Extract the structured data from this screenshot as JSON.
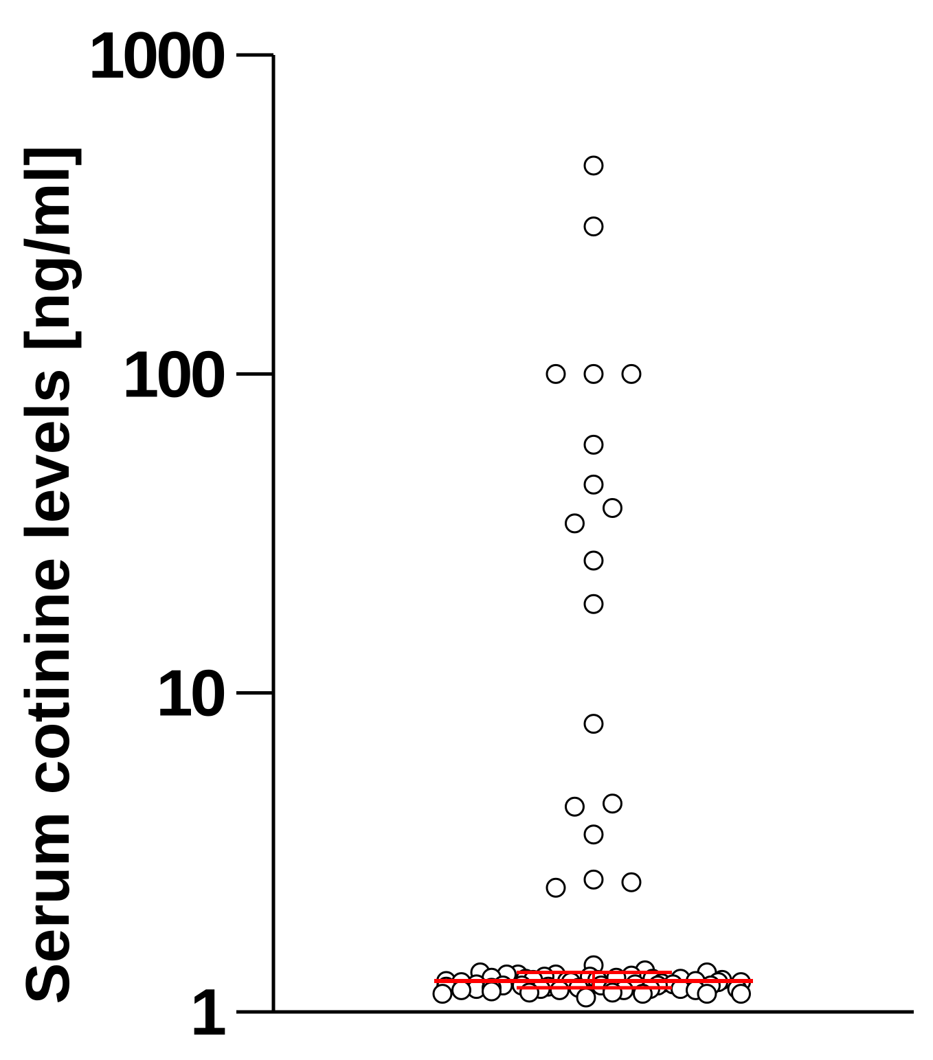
{
  "chart_data": {
    "type": "scatter",
    "ylabel": "Serum cotinine levels [ng/ml]",
    "yscale": "log",
    "ylim": [
      1,
      1000
    ],
    "yticks": [
      1,
      10,
      100,
      1000
    ],
    "ytick_labels": [
      "1",
      "10",
      "100",
      "1000"
    ],
    "grid": false,
    "legend": "none",
    "colors": {
      "points_edge": "#000000",
      "points_fill": "#ffffff",
      "summary_lines": "#ff0000"
    },
    "summary": {
      "center": 1.25,
      "upper": 1.33,
      "lower": 1.19
    },
    "points": [
      {
        "x": 0,
        "y": 450
      },
      {
        "x": 0,
        "y": 290
      },
      {
        "x": -0.5,
        "y": 100
      },
      {
        "x": 0,
        "y": 100
      },
      {
        "x": 0.5,
        "y": 100
      },
      {
        "x": 0,
        "y": 60
      },
      {
        "x": 0,
        "y": 45
      },
      {
        "x": 0.25,
        "y": 38
      },
      {
        "x": -0.25,
        "y": 34
      },
      {
        "x": 0,
        "y": 26
      },
      {
        "x": 0,
        "y": 19
      },
      {
        "x": 0,
        "y": 8
      },
      {
        "x": 0.25,
        "y": 4.5
      },
      {
        "x": -0.25,
        "y": 4.4
      },
      {
        "x": 0,
        "y": 3.6
      },
      {
        "x": 0,
        "y": 2.6
      },
      {
        "x": 0.5,
        "y": 2.55
      },
      {
        "x": -0.5,
        "y": 2.45
      },
      {
        "x": 0,
        "y": 1.4
      },
      {
        "x": 0.68,
        "y": 1.35
      },
      {
        "x": 1.5,
        "y": 1.33
      },
      {
        "x": -1.5,
        "y": 1.33
      },
      {
        "x": -1.0,
        "y": 1.31
      },
      {
        "x": -0.5,
        "y": 1.31
      },
      {
        "x": -1.15,
        "y": 1.31
      },
      {
        "x": 0.5,
        "y": 1.3
      },
      {
        "x": -0.05,
        "y": 1.29
      },
      {
        "x": -0.65,
        "y": 1.29
      },
      {
        "x": 0.3,
        "y": 1.28
      },
      {
        "x": -1.35,
        "y": 1.28
      },
      {
        "x": 1.15,
        "y": 1.27
      },
      {
        "x": 0.78,
        "y": 1.27
      },
      {
        "x": -0.9,
        "y": 1.27
      },
      {
        "x": -0.8,
        "y": 1.26
      },
      {
        "x": 0.05,
        "y": 1.26
      },
      {
        "x": 1.7,
        "y": 1.26
      },
      {
        "x": 1.35,
        "y": 1.25
      },
      {
        "x": -1.95,
        "y": 1.25
      },
      {
        "x": -0.35,
        "y": 1.25
      },
      {
        "x": 1.95,
        "y": 1.24
      },
      {
        "x": 1.65,
        "y": 1.24
      },
      {
        "x": -1.75,
        "y": 1.24
      },
      {
        "x": -0.3,
        "y": 1.24
      },
      {
        "x": 0.9,
        "y": 1.23
      },
      {
        "x": 1.05,
        "y": 1.22
      },
      {
        "x": 0.55,
        "y": 1.22
      },
      {
        "x": -1.55,
        "y": 1.22
      },
      {
        "x": -1.2,
        "y": 1.21
      },
      {
        "x": 0.1,
        "y": 1.21
      },
      {
        "x": -0.95,
        "y": 1.21
      },
      {
        "x": -1.95,
        "y": 1.2
      },
      {
        "x": 1.55,
        "y": 1.21
      },
      {
        "x": 0.85,
        "y": 1.21
      },
      {
        "x": -0.6,
        "y": 1.2
      },
      {
        "x": -0.2,
        "y": 1.19
      },
      {
        "x": -1.55,
        "y": 1.18
      },
      {
        "x": -1.35,
        "y": 1.19
      },
      {
        "x": 1.9,
        "y": 1.18
      },
      {
        "x": -0.7,
        "y": 1.18
      },
      {
        "x": 0.25,
        "y": 1.18
      },
      {
        "x": 0.75,
        "y": 1.18
      },
      {
        "x": 1.15,
        "y": 1.18
      },
      {
        "x": -0.45,
        "y": 1.17
      },
      {
        "x": 1.35,
        "y": 1.17
      },
      {
        "x": -1.75,
        "y": 1.17
      },
      {
        "x": 0.4,
        "y": 1.17
      },
      {
        "x": -1.35,
        "y": 1.16
      },
      {
        "x": -0.85,
        "y": 1.15
      },
      {
        "x": 0.25,
        "y": 1.15
      },
      {
        "x": 1.5,
        "y": 1.14
      },
      {
        "x": 1.95,
        "y": 1.14
      },
      {
        "x": -2.0,
        "y": 1.14
      },
      {
        "x": 0.65,
        "y": 1.14
      },
      {
        "x": -0.1,
        "y": 1.11
      }
    ]
  }
}
